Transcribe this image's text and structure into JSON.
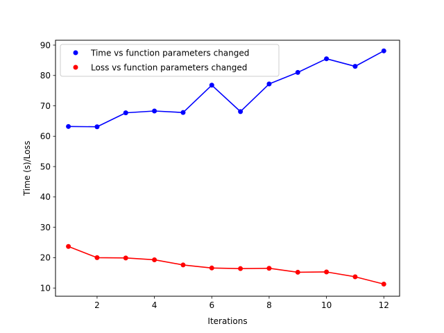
{
  "chart_data": {
    "type": "line",
    "title": "",
    "xlabel": "Iterations",
    "ylabel": "Time (s)/Loss",
    "xlim": [
      0.55,
      12.55
    ],
    "ylim": [
      7.3,
      91.6
    ],
    "xticks": [
      2,
      4,
      6,
      8,
      10,
      12
    ],
    "yticks": [
      10,
      20,
      30,
      40,
      50,
      60,
      70,
      80,
      90
    ],
    "grid": false,
    "legend_position": "top-left",
    "x": [
      1,
      2,
      3,
      4,
      5,
      6,
      7,
      8,
      9,
      10,
      11,
      12
    ],
    "series": [
      {
        "name": "Time vs function parameters changed",
        "color": "#0000ff",
        "marker": "circle",
        "values": [
          63.2,
          63.1,
          67.7,
          68.3,
          67.8,
          76.8,
          68.1,
          77.2,
          81.0,
          85.5,
          83.0,
          88.1
        ]
      },
      {
        "name": "Loss vs function parameters changed",
        "color": "#ff0000",
        "marker": "circle",
        "values": [
          23.7,
          20.0,
          19.9,
          19.3,
          17.6,
          16.6,
          16.4,
          16.5,
          15.2,
          15.3,
          13.7,
          11.3
        ]
      }
    ]
  }
}
